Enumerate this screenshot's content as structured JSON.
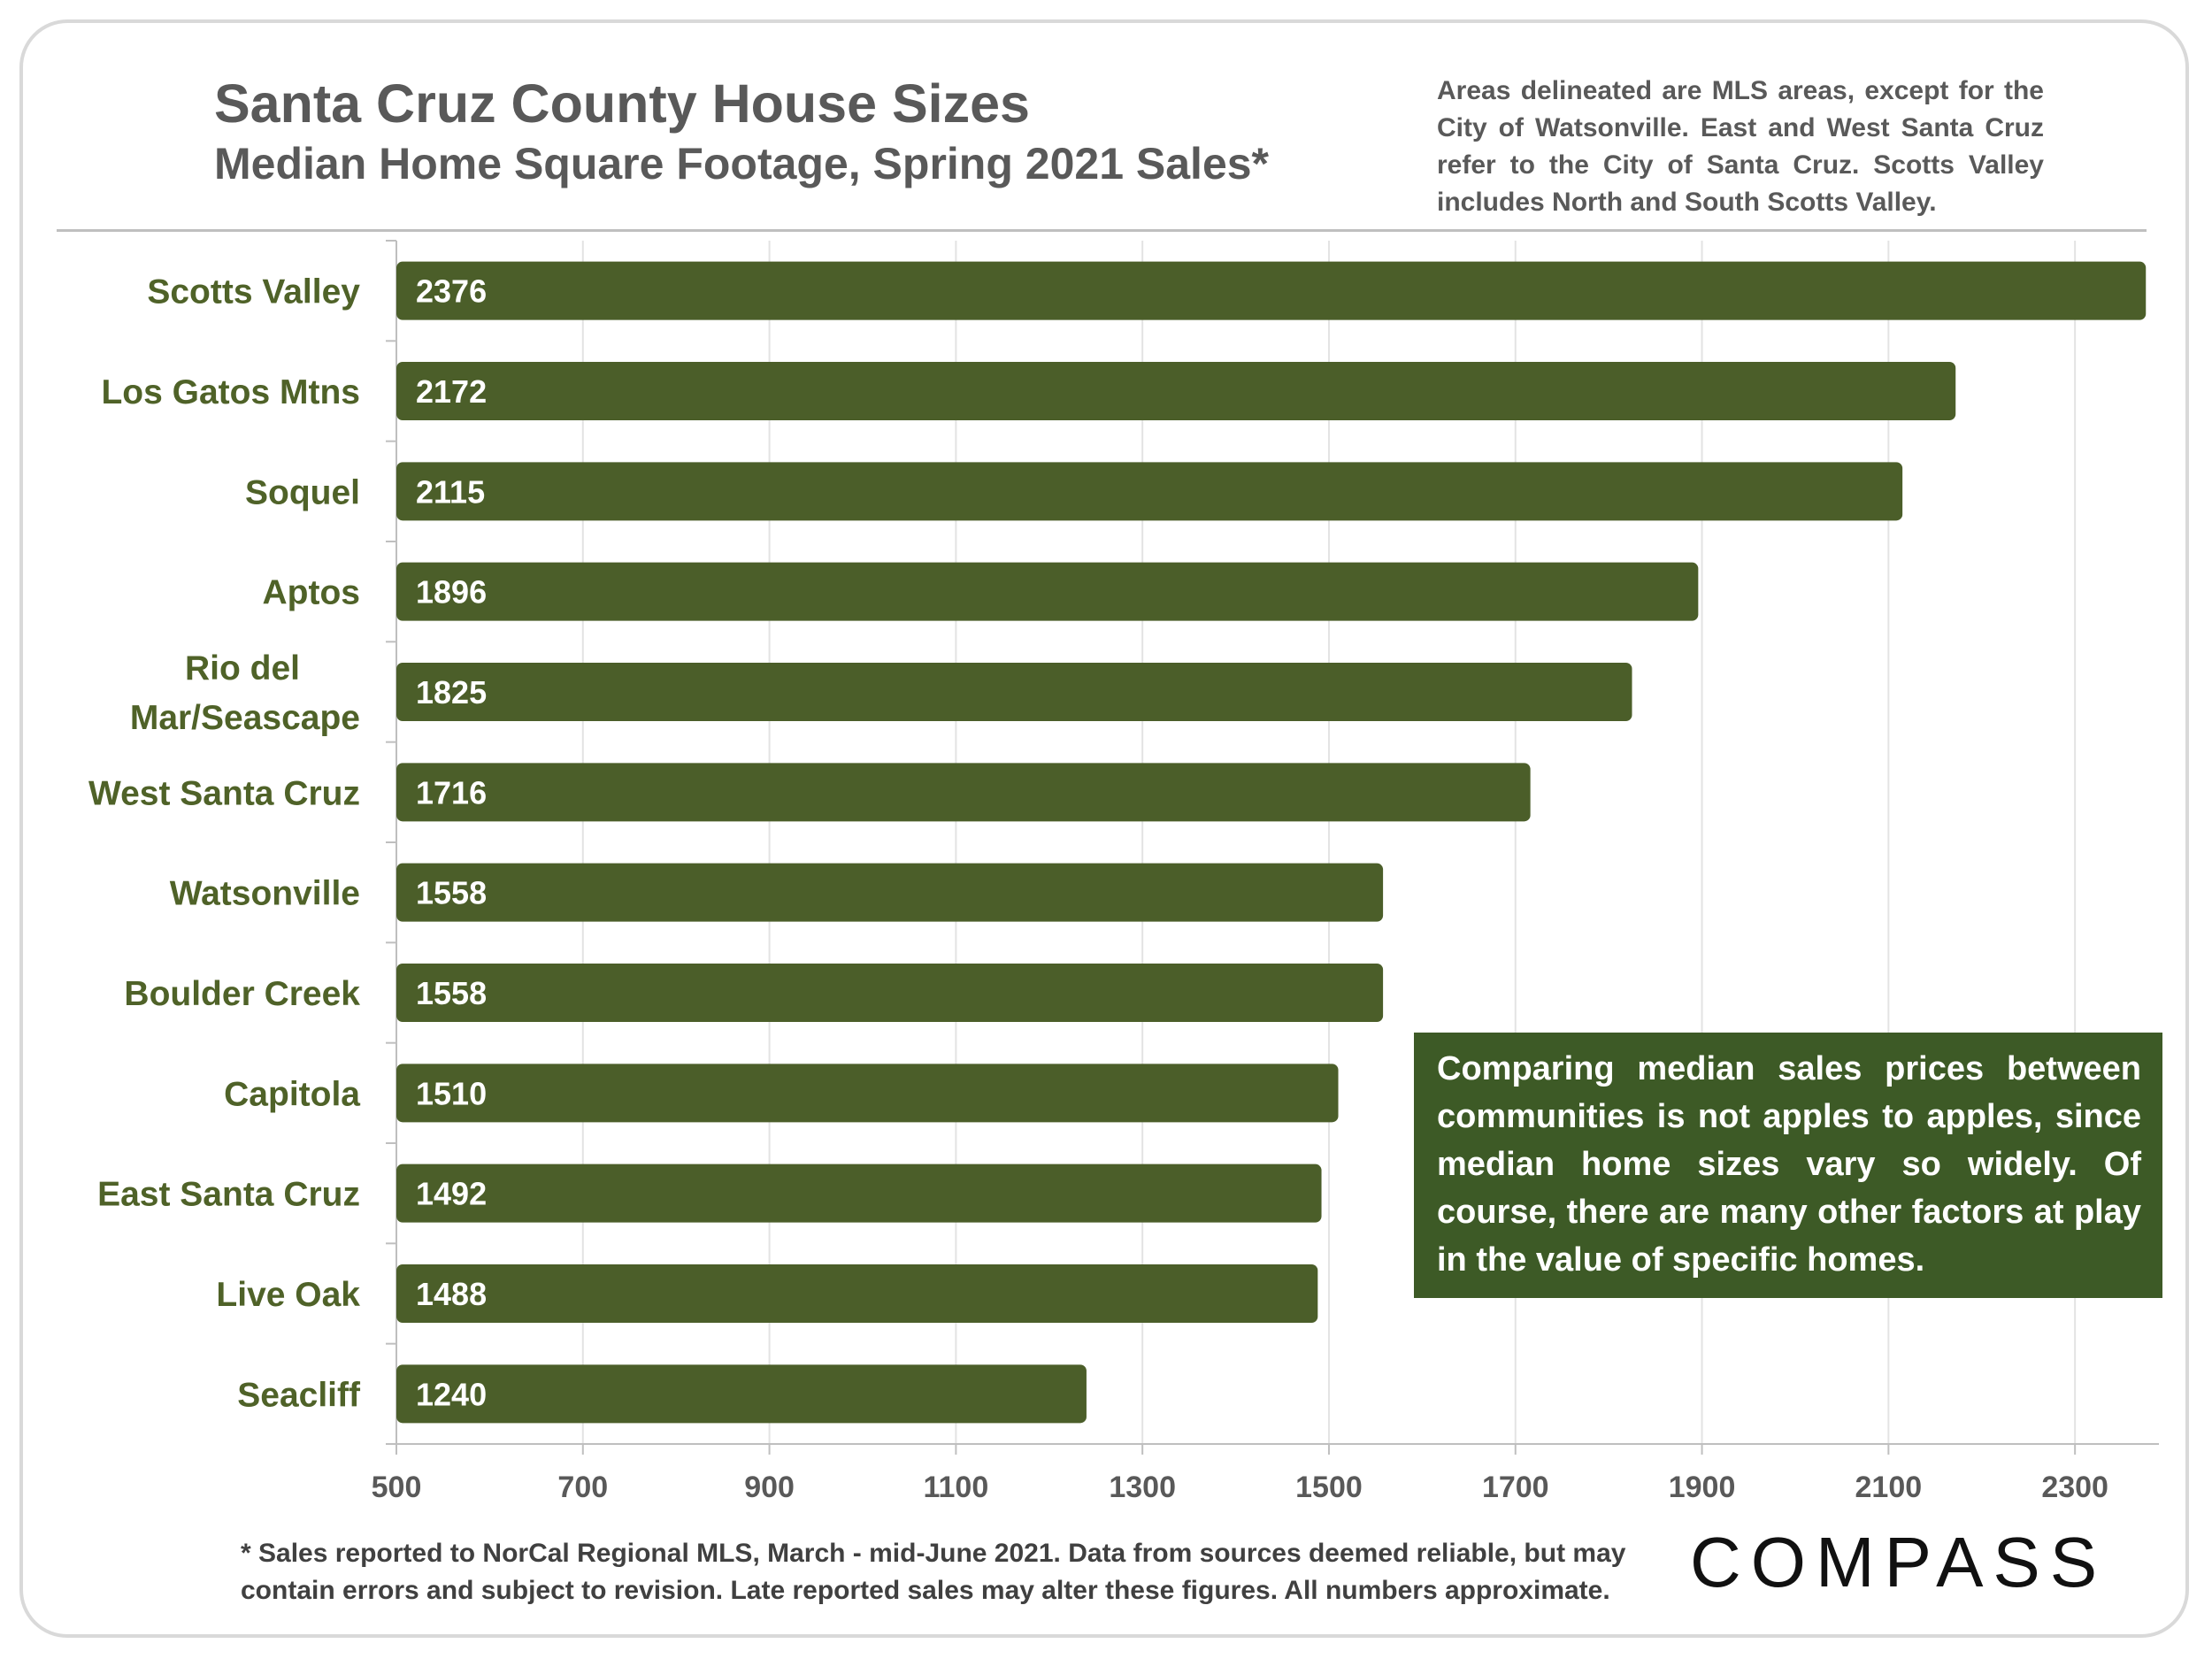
{
  "header": {
    "title": "Santa Cruz County House Sizes",
    "subtitle": "Median Home Square Footage, Spring 2021 Sales*",
    "note": "Areas delineated are MLS areas, except for the City of Watsonville. East and West Santa Cruz refer to the City of Santa Cruz. Scotts Valley includes North and South Scotts Valley."
  },
  "callout": {
    "text": "Comparing median sales prices between communities is not apples to apples, since median home sizes vary so widely. Of course, there are many other factors at play in the value of specific homes."
  },
  "footnote": {
    "line1": "* Sales reported to NorCal Regional MLS, March - mid-June 2021. Data from sources deemed reliable, but may",
    "line2": "contain errors and subject to revision. Late reported sales may alter these figures. All numbers approximate."
  },
  "logo": {
    "text": "COMPASS"
  },
  "colors": {
    "bar": "#4b5e29",
    "category_label": "#4f6228",
    "axis_text": "#595959",
    "gridline": "#e3e3e3"
  },
  "chart_data": {
    "type": "bar",
    "orientation": "horizontal",
    "title": "Santa Cruz County House Sizes",
    "subtitle": "Median Home Square Footage, Spring 2021 Sales*",
    "xlabel": "",
    "ylabel": "",
    "xlim": [
      500,
      2390
    ],
    "xticks": [
      500,
      700,
      900,
      1100,
      1300,
      1500,
      1700,
      1900,
      2100,
      2300
    ],
    "grid": true,
    "categories": [
      [
        "Scotts Valley"
      ],
      [
        "Los Gatos Mtns"
      ],
      [
        "Soquel"
      ],
      [
        "Aptos"
      ],
      [
        "Rio del",
        "Mar/Seascape"
      ],
      [
        "West Santa Cruz"
      ],
      [
        "Watsonville"
      ],
      [
        "Boulder Creek"
      ],
      [
        "Capitola"
      ],
      [
        "East Santa Cruz"
      ],
      [
        "Live Oak"
      ],
      [
        "Seacliff"
      ]
    ],
    "values": [
      2376,
      2172,
      2115,
      1896,
      1825,
      1716,
      1558,
      1558,
      1510,
      1492,
      1488,
      1240
    ]
  }
}
